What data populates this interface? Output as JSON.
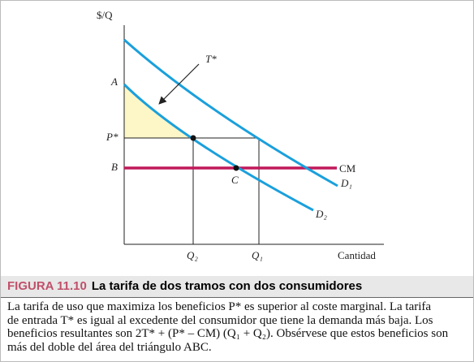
{
  "figure": {
    "y_axis_label": "$/Q",
    "x_axis_label": "Cantidad",
    "labels": {
      "A": "A",
      "P": "P*",
      "B": "B",
      "C": "C",
      "T": "T*",
      "Q2": "Q₂",
      "Q1": "Q₁"
    },
    "curves": {
      "CM": "CM",
      "D1": "D₁",
      "D2": "D₂"
    }
  },
  "caption": {
    "number": "FIGURA 11.10",
    "title": "La tarifa de dos tramos con dos consumidores",
    "lines": [
      "La tarifa de uso que maximiza los beneficios P* es superior al coste marginal. La tarifa",
      "de entrada T* es igual al excedente del consumidor que tiene la demanda más baja. Los",
      "beneficios resultantes son 2T* + (P* – CM) (Q₁ + Q₂). Obsérvese que estos beneficios son",
      "más del doble del área del triángulo ABC."
    ]
  }
}
